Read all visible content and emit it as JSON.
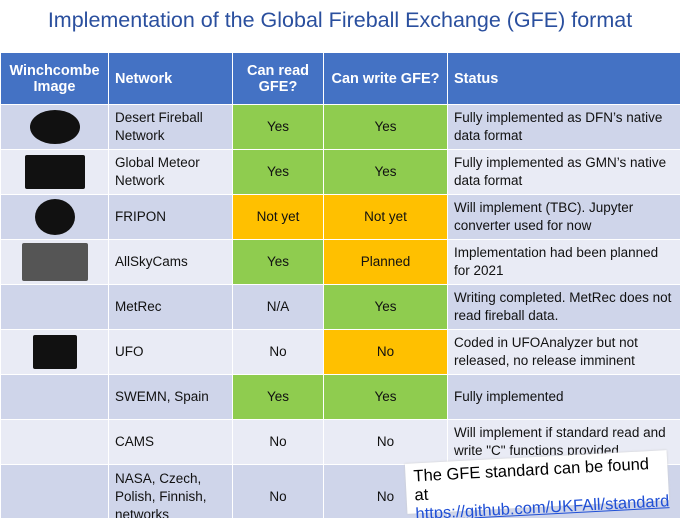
{
  "title": "Implementation of the Global Fireball Exchange (GFE) format",
  "table": {
    "header": [
      "Winchcombe Image",
      "Network",
      "Can read GFE?",
      "Can write GFE?",
      "Status"
    ],
    "rows": [
      {
        "network": "Desert Fireball Network",
        "read": "Yes",
        "write": "Yes",
        "status": "Fully implemented as DFN’s native data format"
      },
      {
        "network": "Global Meteor Network",
        "read": "Yes",
        "write": "Yes",
        "status": "Fully implemented as GMN’s native data format"
      },
      {
        "network": "FRIPON",
        "read": "Not yet",
        "write": "Not yet",
        "status": "Will implement (TBC). Jupyter converter used for now"
      },
      {
        "network": "AllSkyCams",
        "read": "Yes",
        "write": "Planned",
        "status": "Implementation had been planned for 2021"
      },
      {
        "network": "MetRec",
        "read": "N/A",
        "write": "Yes",
        "status": "Writing completed.  MetRec does not read fireball data."
      },
      {
        "network": "UFO",
        "read": "No",
        "write": "No",
        "status": "Coded in UFOAnalyzer but not released, no release imminent"
      },
      {
        "network": "SWEMN, Spain",
        "read": "Yes",
        "write": "Yes",
        "status": "Fully implemented"
      },
      {
        "network": "CAMS",
        "read": "No",
        "write": "No",
        "status": "Will implement if standard read and write \"C\" functions provided"
      },
      {
        "network": "NASA, Czech, Polish, Finnish, networks",
        "read": "No",
        "write": "No"
      }
    ]
  },
  "note": {
    "text": "The GFE standard can be found at",
    "link": "https://github.com/UKFAll/standard"
  }
}
